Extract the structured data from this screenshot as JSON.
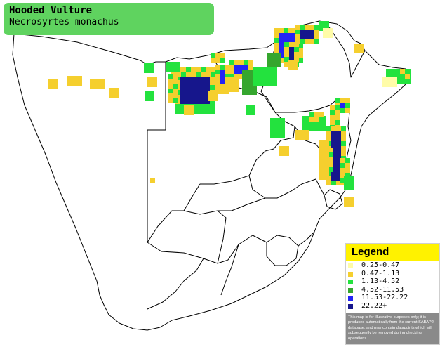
{
  "title": {
    "common_name": "Hooded Vulture",
    "scientific_name": "Necrosyrtes monachus"
  },
  "legend": {
    "title": "Legend",
    "items": [
      {
        "label": "0.25-0.47",
        "color": "#fffca8"
      },
      {
        "label": "0.47-1.13",
        "color": "#f5cf2e"
      },
      {
        "label": "1.13-4.52",
        "color": "#23e23e"
      },
      {
        "label": "4.52-11.53",
        "color": "#35a62e"
      },
      {
        "label": "11.53-22.22",
        "color": "#2323f5"
      },
      {
        "label": "22.22+",
        "color": "#16168c"
      }
    ],
    "disclaimer": "This map is for illustrative purposes only; it is produced automatically from the current SABAP2 database, and may contain datapoints which will subsequently be removed during checking operations."
  },
  "colors": {
    "title_bg": "#5fd35f",
    "legend_header_bg": "#fff200",
    "disclaimer_bg": "#8a8a8a",
    "outline": "#000000"
  }
}
